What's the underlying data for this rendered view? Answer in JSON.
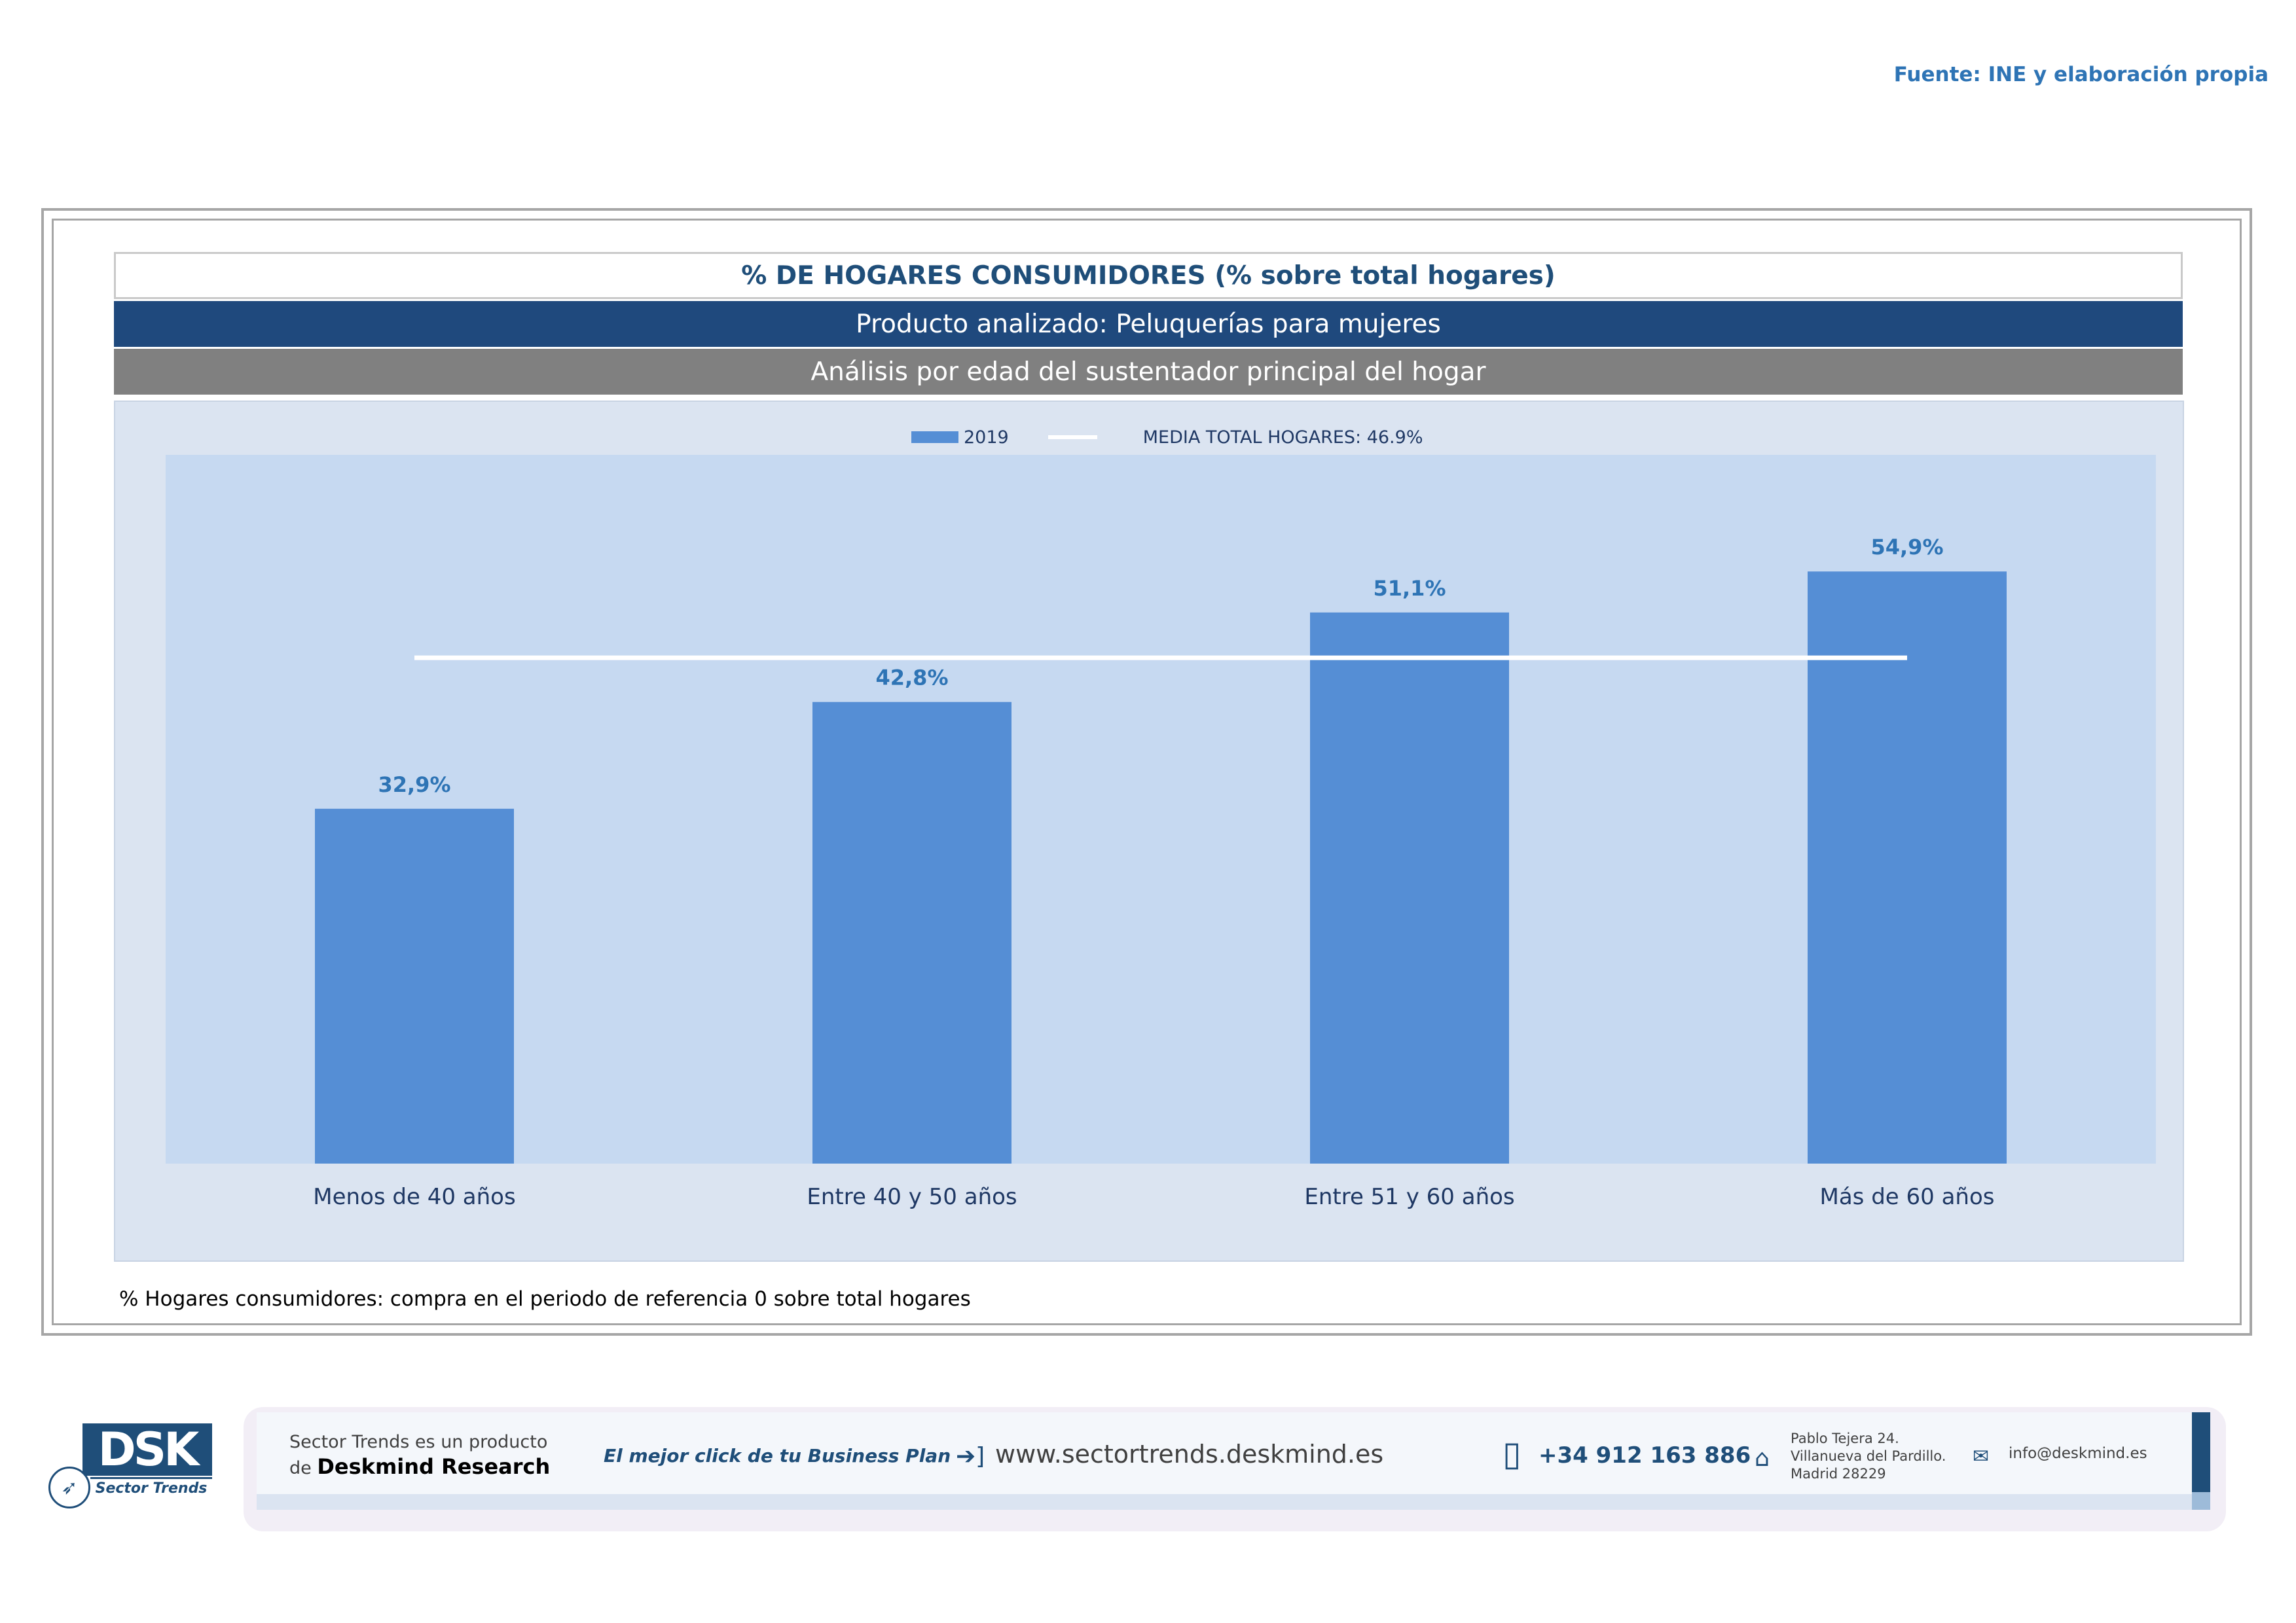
{
  "source": "Fuente: INE y elaboración propia",
  "header": {
    "title": "% DE HOGARES CONSUMIDORES (% sobre total hogares)",
    "product": "Producto analizado: Peluquerías para mujeres",
    "analysis": "Análisis por edad del sustentador principal del hogar"
  },
  "legend": {
    "series_label": "2019",
    "mean_label": "MEDIA TOTAL  HOGARES:  46.9%"
  },
  "chart_data": {
    "type": "bar",
    "title": "% DE HOGARES CONSUMIDORES (% sobre total hogares)",
    "categories": [
      "Menos de 40 años",
      "Entre 40 y 50 años",
      "Entre 51  y 60 años",
      "Más de 60 años"
    ],
    "series": [
      {
        "name": "2019",
        "values": [
          32.9,
          42.8,
          51.1,
          54.9
        ],
        "labels": [
          "32,9%",
          "42,8%",
          "51,1%",
          "54,9%"
        ]
      }
    ],
    "reference_line": {
      "name": "MEDIA TOTAL  HOGARES",
      "value": 46.9
    },
    "ylim": [
      0,
      60
    ],
    "xlabel": "",
    "ylabel": "",
    "grid": false,
    "legend_position": "top-center",
    "colors": {
      "bar": "#558ed5",
      "label": "#2e74b5",
      "mean_line": "#ffffff",
      "plot_bg": "#c6d9f1"
    }
  },
  "note": "% Hogares consumidores: compra en el periodo de referencia 0 sobre total hogares",
  "footer": {
    "logo_text": "DSK",
    "logo_sub": "Sector Trends",
    "product_line1": "Sector Trends es un producto",
    "product_line2_prefix": "de",
    "product_line2_brand": "Deskmind Research",
    "slogan": "El mejor click de tu Business Plan",
    "website": "www.sectortrends.deskmind.es",
    "phone": "+34 912 163 886",
    "address_line1": "Pablo Tejera 24.",
    "address_line2": "Villanueva del Pardillo.",
    "address_line3": "Madrid 28229",
    "email": "info@deskmind.es"
  }
}
